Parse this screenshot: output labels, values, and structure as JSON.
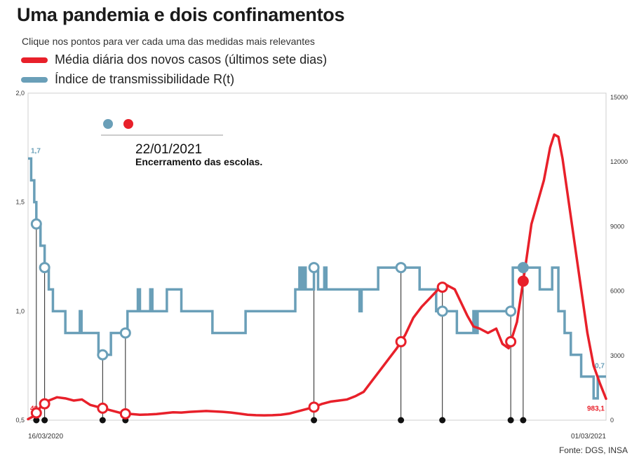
{
  "title": "Uma pandemia e dois confinamentos",
  "subtitle": "Clique nos pontos para ver cada uma das medidas mais relevantes",
  "legend": [
    {
      "label": "Média diária dos novos casos (últimos sete dias)",
      "color": "#e8202a"
    },
    {
      "label": "Índice de transmissibilidade R(t)",
      "color": "#6a9fb8"
    }
  ],
  "source": "Fonte: DGS, INSA",
  "annotation": {
    "date": "22/01/2021",
    "text": "Encerramento das escolas."
  },
  "chart_data": {
    "type": "line",
    "x_start_label": "16/03/2020",
    "x_end_label": "01/03/2021",
    "left_axis": {
      "ticks": [
        "2,0",
        "1,5",
        "1,0",
        "0,5"
      ],
      "ylim": [
        0.5,
        2.0
      ]
    },
    "right_axis": {
      "ticks": [
        "15000",
        "12000",
        "9000",
        "6000",
        "3000",
        "0"
      ],
      "ylim": [
        0,
        15000
      ]
    },
    "series": [
      {
        "axis": "left",
        "color": "#6a9fb8",
        "start_label": "1,7",
        "end_label": "0,7",
        "points": [
          [
            0,
            1.7
          ],
          [
            1.5,
            1.6
          ],
          [
            3,
            1.5
          ],
          [
            4,
            1.4
          ],
          [
            6,
            1.3
          ],
          [
            8,
            1.2
          ],
          [
            10,
            1.1
          ],
          [
            12,
            1.0
          ],
          [
            14,
            1.0
          ],
          [
            16,
            1.0
          ],
          [
            18,
            0.9
          ],
          [
            23,
            0.9
          ],
          [
            25,
            1.0
          ],
          [
            25.8,
            0.9
          ],
          [
            33,
            0.9
          ],
          [
            34,
            0.8
          ],
          [
            39,
            0.8
          ],
          [
            40,
            0.9
          ],
          [
            47,
            0.9
          ],
          [
            48,
            1.0
          ],
          [
            52,
            1.0
          ],
          [
            53,
            1.1
          ],
          [
            54,
            1.0
          ],
          [
            58,
            1.0
          ],
          [
            59,
            1.1
          ],
          [
            60,
            1.0
          ],
          [
            66,
            1.0
          ],
          [
            67,
            1.1
          ],
          [
            73,
            1.1
          ],
          [
            74,
            1.0
          ],
          [
            88,
            1.0
          ],
          [
            89,
            0.9
          ],
          [
            104,
            0.9
          ],
          [
            105,
            1.0
          ],
          [
            128,
            1.0
          ],
          [
            129,
            1.1
          ],
          [
            130,
            1.1
          ],
          [
            131,
            1.2
          ],
          [
            132,
            1.1
          ],
          [
            133,
            1.2
          ],
          [
            134,
            1.1
          ],
          [
            137,
            1.1
          ],
          [
            138,
            1.2
          ],
          [
            139,
            1.2
          ],
          [
            140,
            1.1
          ],
          [
            142,
            1.1
          ],
          [
            143,
            1.2
          ],
          [
            144,
            1.1
          ],
          [
            159,
            1.1
          ],
          [
            160,
            1.0
          ],
          [
            161,
            1.1
          ],
          [
            168,
            1.1
          ],
          [
            169,
            1.2
          ],
          [
            188,
            1.2
          ],
          [
            189,
            1.1
          ],
          [
            196,
            1.1
          ],
          [
            197,
            1.0
          ],
          [
            206,
            1.0
          ],
          [
            207,
            0.9
          ],
          [
            214,
            0.9
          ],
          [
            215,
            1.0
          ],
          [
            216,
            0.9
          ],
          [
            217,
            1.0
          ],
          [
            233,
            1.0
          ],
          [
            234,
            1.2
          ],
          [
            246,
            1.2
          ],
          [
            247,
            1.1
          ],
          [
            252,
            1.1
          ],
          [
            253,
            1.2
          ],
          [
            255,
            1.2
          ],
          [
            256,
            1.0
          ],
          [
            258,
            1.0
          ],
          [
            259,
            0.9
          ],
          [
            261,
            0.9
          ],
          [
            262,
            0.8
          ],
          [
            266,
            0.8
          ],
          [
            267,
            0.7
          ],
          [
            272,
            0.7
          ],
          [
            273,
            0.6
          ],
          [
            274,
            0.6
          ],
          [
            275,
            0.7
          ],
          [
            279,
            0.7
          ]
        ]
      },
      {
        "axis": "right",
        "color": "#e8202a",
        "start_label": "48",
        "end_label": "983,1",
        "points": [
          [
            0,
            48
          ],
          [
            3,
            200
          ],
          [
            6,
            600
          ],
          [
            10,
            900
          ],
          [
            14,
            1050
          ],
          [
            18,
            1000
          ],
          [
            22,
            900
          ],
          [
            26,
            950
          ],
          [
            30,
            700
          ],
          [
            34,
            600
          ],
          [
            38,
            500
          ],
          [
            42,
            400
          ],
          [
            46,
            300
          ],
          [
            50,
            280
          ],
          [
            54,
            250
          ],
          [
            58,
            260
          ],
          [
            62,
            280
          ],
          [
            66,
            320
          ],
          [
            70,
            360
          ],
          [
            74,
            350
          ],
          [
            78,
            380
          ],
          [
            82,
            400
          ],
          [
            86,
            420
          ],
          [
            90,
            400
          ],
          [
            94,
            380
          ],
          [
            98,
            350
          ],
          [
            102,
            300
          ],
          [
            106,
            250
          ],
          [
            110,
            230
          ],
          [
            114,
            220
          ],
          [
            118,
            230
          ],
          [
            122,
            250
          ],
          [
            126,
            300
          ],
          [
            130,
            400
          ],
          [
            134,
            500
          ],
          [
            138,
            600
          ],
          [
            142,
            750
          ],
          [
            146,
            850
          ],
          [
            150,
            900
          ],
          [
            154,
            950
          ],
          [
            158,
            1100
          ],
          [
            162,
            1300
          ],
          [
            166,
            1800
          ],
          [
            170,
            2300
          ],
          [
            174,
            2800
          ],
          [
            178,
            3300
          ],
          [
            182,
            3900
          ],
          [
            186,
            4700
          ],
          [
            190,
            5200
          ],
          [
            194,
            5600
          ],
          [
            198,
            6000
          ],
          [
            202,
            6200
          ],
          [
            206,
            6000
          ],
          [
            209,
            5400
          ],
          [
            212,
            4800
          ],
          [
            215,
            4300
          ],
          [
            218,
            4200
          ],
          [
            222,
            4000
          ],
          [
            226,
            4200
          ],
          [
            229,
            3500
          ],
          [
            232,
            3300
          ],
          [
            236,
            4500
          ],
          [
            240,
            7000
          ],
          [
            243,
            9000
          ],
          [
            246,
            10000
          ],
          [
            249,
            11000
          ],
          [
            252,
            12500
          ],
          [
            254,
            13100
          ],
          [
            256,
            13000
          ],
          [
            258,
            12000
          ],
          [
            261,
            10000
          ],
          [
            264,
            8000
          ],
          [
            267,
            6000
          ],
          [
            270,
            4000
          ],
          [
            273,
            2500
          ],
          [
            276,
            1700
          ],
          [
            279,
            983.1
          ]
        ]
      }
    ],
    "measure_points": [
      {
        "x": 4
      },
      {
        "x": 8
      },
      {
        "x": 36
      },
      {
        "x": 47
      },
      {
        "x": 138
      },
      {
        "x": 180
      },
      {
        "x": 200
      },
      {
        "x": 233
      },
      {
        "x": 239
      }
    ],
    "x_max": 279
  }
}
